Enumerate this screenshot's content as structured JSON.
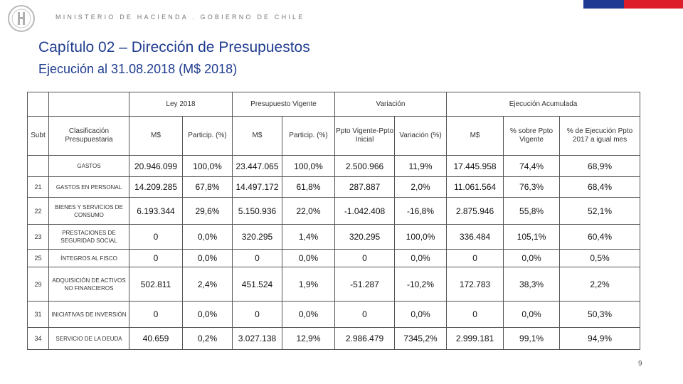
{
  "header": {
    "ministry": "MINISTERIO DE HACIENDA . GOBIERNO DE CHILE",
    "title": "Capítulo 02 – Dirección de Presupuestos",
    "subtitle": "Ejecución al 31.08.2018 (M$ 2018)",
    "colors": {
      "title": "#1f3c8f",
      "flag_blue": "#1f3a93",
      "flag_red": "#dd1e2a"
    }
  },
  "logo": {
    "icon": "coat-of-arms-icon"
  },
  "table": {
    "col_subt": "Subt",
    "col_clasificacion": "Clasificación Presupuestaria",
    "groups": [
      "Ley 2018",
      "Presupuesto Vigente",
      "Variación",
      "Ejecución Acumulada"
    ],
    "subheaders": [
      "M$",
      "Particip. (%)",
      "M$",
      "Particip. (%)",
      "Ppto Vigente-Ppto Inicial",
      "Variación (%)",
      "M$",
      "% sobre Ppto Vigente",
      "% de Ejecución Ppto 2017 a igual mes"
    ],
    "rows": [
      {
        "subt": "",
        "label": "GASTOS",
        "values": [
          "20.946.099",
          "100,0%",
          "23.447.065",
          "100,0%",
          "2.500.966",
          "11,9%",
          "17.445.958",
          "74,4%",
          "68,9%"
        ]
      },
      {
        "subt": "21",
        "label": "GASTOS EN PERSONAL",
        "values": [
          "14.209.285",
          "67,8%",
          "14.497.172",
          "61,8%",
          "287.887",
          "2,0%",
          "11.061.564",
          "76,3%",
          "68,4%"
        ]
      },
      {
        "subt": "22",
        "label": "BIENES Y SERVICIOS DE CONSUMO",
        "values": [
          "6.193.344",
          "29,6%",
          "5.150.936",
          "22,0%",
          "-1.042.408",
          "-16,8%",
          "2.875.946",
          "55,8%",
          "52,1%"
        ]
      },
      {
        "subt": "23",
        "label": "PRESTACIONES DE SEGURIDAD SOCIAL",
        "values": [
          "0",
          "0,0%",
          "320.295",
          "1,4%",
          "320.295",
          "100,0%",
          "336.484",
          "105,1%",
          "60,4%"
        ]
      },
      {
        "subt": "25",
        "label": "ÍNTEGROS AL FISCO",
        "values": [
          "0",
          "0,0%",
          "0",
          "0,0%",
          "0",
          "0,0%",
          "0",
          "0,0%",
          "0,5%"
        ]
      },
      {
        "subt": "29",
        "label": "ADQUISICIÓN DE ACTIVOS NO FINANCIEROS",
        "values": [
          "502.811",
          "2,4%",
          "451.524",
          "1,9%",
          "-51.287",
          "-10,2%",
          "172.783",
          "38,3%",
          "2,2%"
        ]
      },
      {
        "subt": "31",
        "label": "INICIATIVAS DE INVERSIÓN",
        "values": [
          "0",
          "0,0%",
          "0",
          "0,0%",
          "0",
          "0,0%",
          "0",
          "0,0%",
          "50,3%"
        ]
      },
      {
        "subt": "34",
        "label": "SERVICIO DE LA DEUDA",
        "values": [
          "40.659",
          "0,2%",
          "3.027.138",
          "12,9%",
          "2.986.479",
          "7345,2%",
          "2.999.181",
          "99,1%",
          "94,9%"
        ]
      }
    ]
  },
  "footer": {
    "page_number": "9"
  }
}
